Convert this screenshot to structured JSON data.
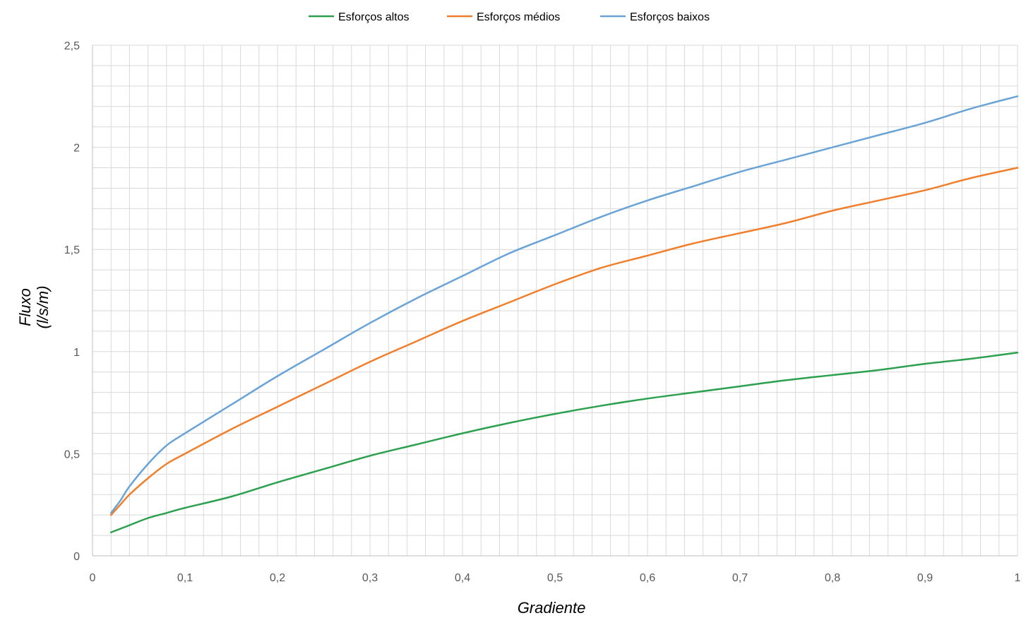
{
  "chart_data": {
    "type": "line",
    "xlabel": "Gradiente",
    "ylabel_line1": "Fluxo",
    "ylabel_line2": "(l/s/m)",
    "xlim": [
      0,
      1
    ],
    "ylim": [
      0,
      2.5
    ],
    "x_ticks": [
      "0",
      "0,1",
      "0,2",
      "0,3",
      "0,4",
      "0,5",
      "0,6",
      "0,7",
      "0,8",
      "0,9",
      "1"
    ],
    "y_ticks": [
      "0",
      "0,5",
      "1",
      "1,5",
      "2",
      "2,5"
    ],
    "grid": true,
    "legend_position": "top-center",
    "series": [
      {
        "name": "Esforços altos",
        "color": "#2ca04f",
        "points": [
          [
            0.02,
            0.115
          ],
          [
            0.04,
            0.15
          ],
          [
            0.06,
            0.185
          ],
          [
            0.08,
            0.21
          ],
          [
            0.1,
            0.235
          ],
          [
            0.15,
            0.29
          ],
          [
            0.2,
            0.36
          ],
          [
            0.25,
            0.425
          ],
          [
            0.3,
            0.49
          ],
          [
            0.35,
            0.545
          ],
          [
            0.4,
            0.6
          ],
          [
            0.45,
            0.65
          ],
          [
            0.5,
            0.695
          ],
          [
            0.55,
            0.735
          ],
          [
            0.6,
            0.77
          ],
          [
            0.65,
            0.8
          ],
          [
            0.7,
            0.83
          ],
          [
            0.75,
            0.86
          ],
          [
            0.8,
            0.885
          ],
          [
            0.85,
            0.91
          ],
          [
            0.9,
            0.94
          ],
          [
            0.95,
            0.965
          ],
          [
            1.0,
            0.995
          ]
        ]
      },
      {
        "name": "Esforços médios",
        "color": "#f07f2d",
        "points": [
          [
            0.02,
            0.2
          ],
          [
            0.03,
            0.25
          ],
          [
            0.04,
            0.3
          ],
          [
            0.06,
            0.38
          ],
          [
            0.08,
            0.45
          ],
          [
            0.1,
            0.5
          ],
          [
            0.15,
            0.62
          ],
          [
            0.2,
            0.73
          ],
          [
            0.25,
            0.84
          ],
          [
            0.3,
            0.95
          ],
          [
            0.35,
            1.05
          ],
          [
            0.4,
            1.15
          ],
          [
            0.45,
            1.24
          ],
          [
            0.5,
            1.33
          ],
          [
            0.55,
            1.41
          ],
          [
            0.6,
            1.47
          ],
          [
            0.65,
            1.53
          ],
          [
            0.7,
            1.58
          ],
          [
            0.75,
            1.63
          ],
          [
            0.8,
            1.69
          ],
          [
            0.85,
            1.74
          ],
          [
            0.9,
            1.79
          ],
          [
            0.95,
            1.85
          ],
          [
            1.0,
            1.9
          ]
        ]
      },
      {
        "name": "Esforços baixos",
        "color": "#6aa3d5",
        "points": [
          [
            0.02,
            0.21
          ],
          [
            0.03,
            0.27
          ],
          [
            0.04,
            0.34
          ],
          [
            0.06,
            0.45
          ],
          [
            0.08,
            0.54
          ],
          [
            0.1,
            0.6
          ],
          [
            0.15,
            0.74
          ],
          [
            0.2,
            0.88
          ],
          [
            0.25,
            1.01
          ],
          [
            0.3,
            1.14
          ],
          [
            0.35,
            1.26
          ],
          [
            0.4,
            1.37
          ],
          [
            0.45,
            1.48
          ],
          [
            0.5,
            1.57
          ],
          [
            0.55,
            1.66
          ],
          [
            0.6,
            1.74
          ],
          [
            0.65,
            1.81
          ],
          [
            0.7,
            1.88
          ],
          [
            0.75,
            1.94
          ],
          [
            0.8,
            2.0
          ],
          [
            0.85,
            2.06
          ],
          [
            0.9,
            2.12
          ],
          [
            0.95,
            2.19
          ],
          [
            1.0,
            2.25
          ]
        ]
      }
    ]
  }
}
